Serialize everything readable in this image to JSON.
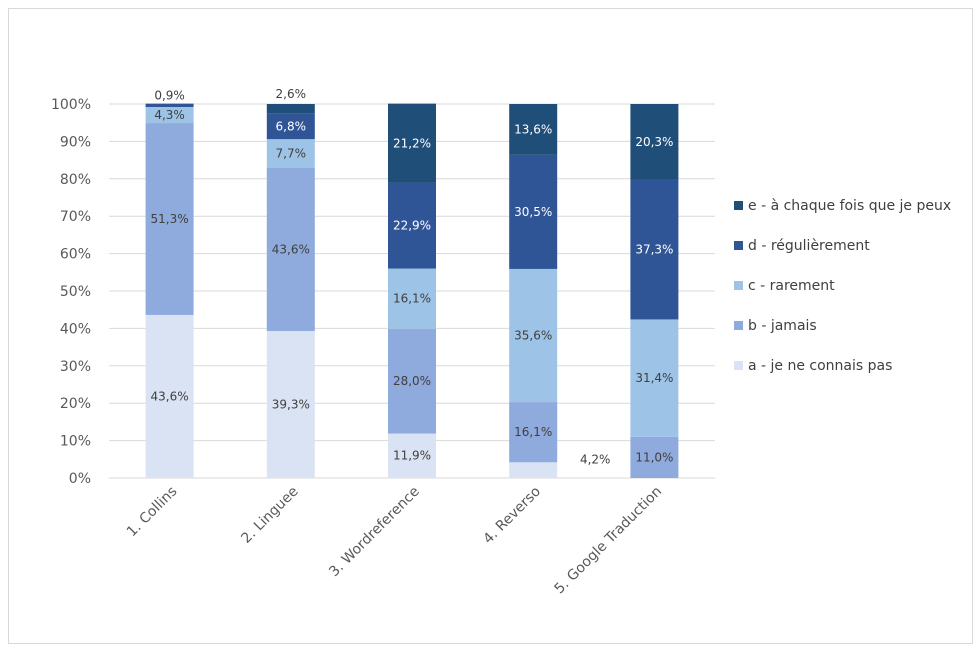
{
  "chart_data": {
    "type": "bar",
    "stacked": true,
    "title": "",
    "xlabel": "",
    "ylabel": "",
    "ylim": [
      0,
      100
    ],
    "y_ticks": [
      "0%",
      "10%",
      "20%",
      "30%",
      "40%",
      "50%",
      "60%",
      "70%",
      "80%",
      "90%",
      "100%"
    ],
    "categories": [
      "1. Collins",
      "2. Linguee",
      "3. Wordreference",
      "4. Reverso",
      "5. Google Traduction"
    ],
    "series": [
      {
        "name": "a - je ne connais pas",
        "color": "#dae3f3",
        "values": [
          43.6,
          39.3,
          11.9,
          4.2,
          0
        ],
        "labels": [
          "43,6%",
          "39,3%",
          "11,9%",
          "4,2%",
          ""
        ]
      },
      {
        "name": "b - jamais",
        "color": "#8faadc",
        "values": [
          51.3,
          43.6,
          28.0,
          16.1,
          11.0
        ],
        "labels": [
          "51,3%",
          "43,6%",
          "28,0%",
          "16,1%",
          "11,0%"
        ]
      },
      {
        "name": "c - rarement",
        "color": "#9dc3e6",
        "values": [
          4.3,
          7.7,
          16.1,
          35.6,
          31.4
        ],
        "labels": [
          "4,3%",
          "7,7%",
          "16,1%",
          "35,6%",
          "31,4%"
        ]
      },
      {
        "name": "d - régulièrement",
        "color": "#2f5597",
        "values": [
          0.9,
          6.8,
          22.9,
          30.5,
          37.3
        ],
        "labels": [
          "0,9%",
          "6,8%",
          "22,9%",
          "30,5%",
          "37,3%"
        ]
      },
      {
        "name": "e - à chaque fois que je peux",
        "color": "#1f4e79",
        "values": [
          0,
          2.6,
          21.2,
          13.6,
          20.3
        ],
        "labels": [
          "",
          "2,6%",
          "21,2%",
          "13,6%",
          "20,3%"
        ]
      }
    ],
    "legend_position": "right",
    "grid": true
  }
}
